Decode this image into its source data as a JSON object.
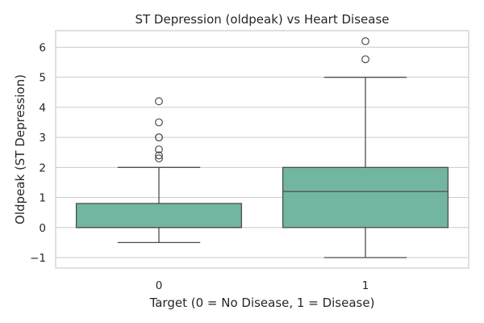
{
  "chart_data": {
    "type": "box",
    "title": "ST Depression (oldpeak) vs Heart Disease",
    "xlabel": "Target (0 = No Disease, 1 = Disease)",
    "ylabel": "Oldpeak (ST Depression)",
    "categories": [
      "0",
      "1"
    ],
    "ylim": [
      -1.35,
      6.55
    ],
    "yticks": [
      -1,
      0,
      1,
      2,
      3,
      4,
      5,
      6
    ],
    "ytick_labels": [
      "−1",
      "0",
      "1",
      "2",
      "3",
      "4",
      "5",
      "6"
    ],
    "grid": "horizontal",
    "colors": {
      "box_fill": "#72b6a1",
      "box_edge": "#4d4d4d",
      "grid": "#cccccc",
      "frame": "#cccccc",
      "text": "#262626"
    },
    "boxes": [
      {
        "category": "0",
        "whisker_low": -0.5,
        "q1": 0.0,
        "median": 0.0,
        "q3": 0.8,
        "whisker_high": 2.0,
        "outliers": [
          2.3,
          2.4,
          2.6,
          3.0,
          3.0,
          3.5,
          4.2
        ]
      },
      {
        "category": "1",
        "whisker_low": -1.0,
        "q1": 0.0,
        "median": 1.2,
        "q3": 2.0,
        "whisker_high": 5.0,
        "outliers": [
          5.6,
          6.2
        ]
      }
    ]
  }
}
